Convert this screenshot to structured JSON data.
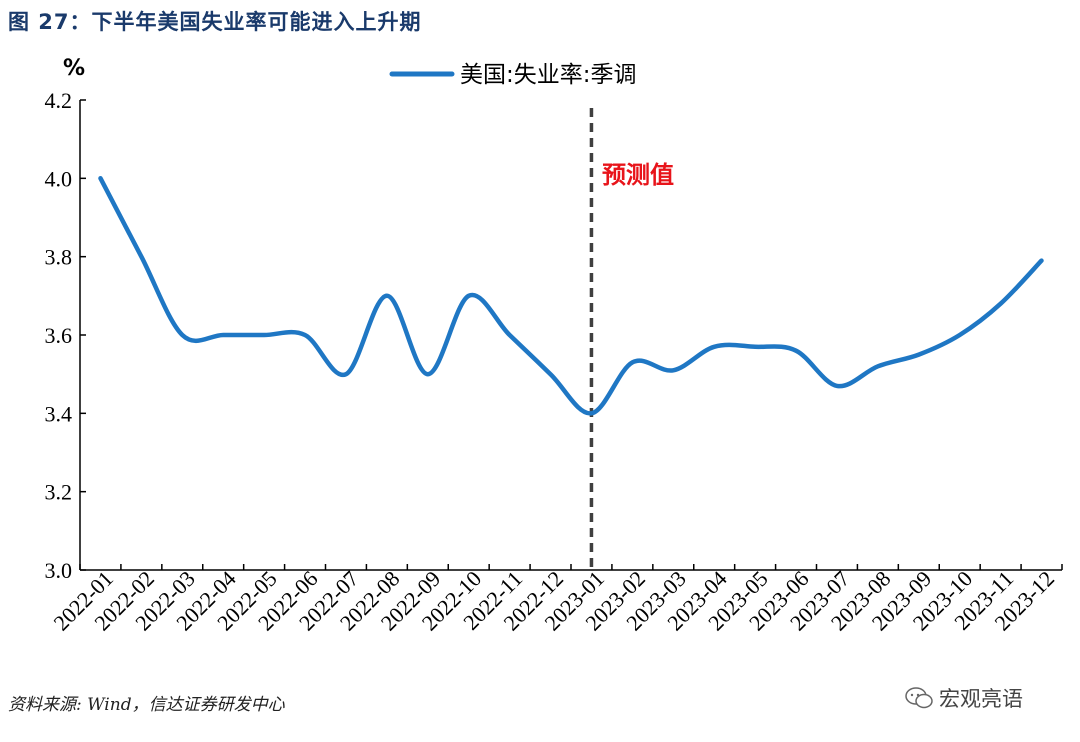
{
  "figure_title": "图 27：下半年美国失业率可能进入上升期",
  "source": "资料来源: Wind，信达证券研发中心",
  "watermark": "宏观亮语",
  "colors": {
    "series": "#1f77c4",
    "title": "#1a3a6b",
    "annotation": "#e8141a",
    "divider": "#404040"
  },
  "chart_data": {
    "type": "line",
    "title": "",
    "ylabel": "%",
    "xlabel": "",
    "ylim": [
      3.0,
      4.2
    ],
    "yticks": [
      "3.0",
      "3.2",
      "3.4",
      "3.6",
      "3.8",
      "4.0",
      "4.2"
    ],
    "categories": [
      "2022-01",
      "2022-02",
      "2022-03",
      "2022-04",
      "2022-05",
      "2022-06",
      "2022-07",
      "2022-08",
      "2022-09",
      "2022-10",
      "2022-11",
      "2022-12",
      "2023-01",
      "2023-02",
      "2023-03",
      "2023-04",
      "2023-05",
      "2023-06",
      "2023-07",
      "2023-08",
      "2023-09",
      "2023-10",
      "2023-11",
      "2023-12"
    ],
    "series": [
      {
        "name": "美国:失业率:季调",
        "values": [
          4.0,
          3.8,
          3.6,
          3.6,
          3.6,
          3.6,
          3.5,
          3.7,
          3.5,
          3.7,
          3.6,
          3.5,
          3.4,
          3.53,
          3.51,
          3.57,
          3.57,
          3.56,
          3.47,
          3.52,
          3.55,
          3.6,
          3.68,
          3.79
        ]
      }
    ],
    "legend": "top-center",
    "grid": false,
    "annotations": [
      {
        "text": "预测值",
        "at_category": "2023-01",
        "style": "dashed-vertical-line"
      }
    ]
  }
}
